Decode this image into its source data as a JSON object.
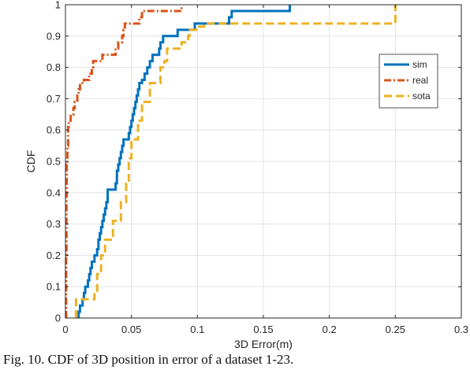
{
  "chart_data": {
    "type": "line",
    "subtype": "empirical-cdf-step",
    "xlabel": "3D Error(m)",
    "ylabel": "CDF",
    "xlim": [
      0,
      0.3
    ],
    "ylim": [
      0,
      1
    ],
    "xticks": [
      "0",
      "0.05",
      "0.1",
      "0.15",
      "0.2",
      "0.25",
      "0.3"
    ],
    "yticks": [
      "0",
      "0.1",
      "0.2",
      "0.3",
      "0.4",
      "0.5",
      "0.6",
      "0.7",
      "0.8",
      "0.9",
      "1"
    ],
    "grid": true,
    "legend_position": "upper-right",
    "series": [
      {
        "name": "sim",
        "color": "#0072BD",
        "style": "solid",
        "points": [
          [
            0.01,
            0
          ],
          [
            0.01,
            0.02
          ],
          [
            0.011,
            0.02
          ],
          [
            0.011,
            0.04
          ],
          [
            0.013,
            0.04
          ],
          [
            0.013,
            0.06
          ],
          [
            0.014,
            0.06
          ],
          [
            0.014,
            0.08
          ],
          [
            0.015,
            0.08
          ],
          [
            0.015,
            0.1
          ],
          [
            0.017,
            0.1
          ],
          [
            0.017,
            0.12
          ],
          [
            0.018,
            0.12
          ],
          [
            0.018,
            0.14
          ],
          [
            0.019,
            0.14
          ],
          [
            0.019,
            0.16
          ],
          [
            0.02,
            0.16
          ],
          [
            0.02,
            0.18
          ],
          [
            0.022,
            0.18
          ],
          [
            0.022,
            0.2
          ],
          [
            0.024,
            0.2
          ],
          [
            0.024,
            0.22
          ],
          [
            0.025,
            0.22
          ],
          [
            0.025,
            0.25
          ],
          [
            0.026,
            0.25
          ],
          [
            0.026,
            0.27
          ],
          [
            0.027,
            0.27
          ],
          [
            0.027,
            0.29
          ],
          [
            0.028,
            0.29
          ],
          [
            0.028,
            0.31
          ],
          [
            0.029,
            0.31
          ],
          [
            0.029,
            0.33
          ],
          [
            0.03,
            0.33
          ],
          [
            0.03,
            0.35
          ],
          [
            0.031,
            0.35
          ],
          [
            0.031,
            0.37
          ],
          [
            0.032,
            0.37
          ],
          [
            0.032,
            0.41
          ],
          [
            0.038,
            0.41
          ],
          [
            0.038,
            0.43
          ],
          [
            0.039,
            0.43
          ],
          [
            0.039,
            0.47
          ],
          [
            0.04,
            0.47
          ],
          [
            0.04,
            0.49
          ],
          [
            0.041,
            0.49
          ],
          [
            0.041,
            0.51
          ],
          [
            0.042,
            0.51
          ],
          [
            0.042,
            0.53
          ],
          [
            0.043,
            0.53
          ],
          [
            0.043,
            0.55
          ],
          [
            0.044,
            0.55
          ],
          [
            0.044,
            0.57
          ],
          [
            0.048,
            0.57
          ],
          [
            0.048,
            0.59
          ],
          [
            0.049,
            0.59
          ],
          [
            0.049,
            0.61
          ],
          [
            0.05,
            0.61
          ],
          [
            0.05,
            0.63
          ],
          [
            0.051,
            0.63
          ],
          [
            0.051,
            0.65
          ],
          [
            0.052,
            0.65
          ],
          [
            0.052,
            0.67
          ],
          [
            0.053,
            0.67
          ],
          [
            0.053,
            0.69
          ],
          [
            0.054,
            0.69
          ],
          [
            0.054,
            0.71
          ],
          [
            0.055,
            0.71
          ],
          [
            0.055,
            0.73
          ],
          [
            0.056,
            0.73
          ],
          [
            0.056,
            0.75
          ],
          [
            0.058,
            0.75
          ],
          [
            0.058,
            0.76
          ],
          [
            0.06,
            0.76
          ],
          [
            0.06,
            0.78
          ],
          [
            0.062,
            0.78
          ],
          [
            0.062,
            0.8
          ],
          [
            0.064,
            0.8
          ],
          [
            0.064,
            0.82
          ],
          [
            0.066,
            0.82
          ],
          [
            0.066,
            0.84
          ],
          [
            0.071,
            0.84
          ],
          [
            0.071,
            0.86
          ],
          [
            0.072,
            0.86
          ],
          [
            0.072,
            0.88
          ],
          [
            0.074,
            0.88
          ],
          [
            0.074,
            0.9
          ],
          [
            0.085,
            0.9
          ],
          [
            0.085,
            0.92
          ],
          [
            0.098,
            0.92
          ],
          [
            0.098,
            0.94
          ],
          [
            0.124,
            0.94
          ],
          [
            0.124,
            0.96
          ],
          [
            0.126,
            0.96
          ],
          [
            0.126,
            0.98
          ],
          [
            0.17,
            0.98
          ],
          [
            0.17,
            1.0
          ]
        ]
      },
      {
        "name": "real",
        "color": "#D95319",
        "style": "dash-dot",
        "points": [
          [
            0.0005,
            0
          ],
          [
            0.0005,
            0.2
          ],
          [
            0.0008,
            0.2
          ],
          [
            0.0008,
            0.39
          ],
          [
            0.001,
            0.39
          ],
          [
            0.001,
            0.49
          ],
          [
            0.0015,
            0.49
          ],
          [
            0.0015,
            0.55
          ],
          [
            0.002,
            0.55
          ],
          [
            0.002,
            0.61
          ],
          [
            0.0025,
            0.61
          ],
          [
            0.0025,
            0.63
          ],
          [
            0.004,
            0.63
          ],
          [
            0.004,
            0.65
          ],
          [
            0.006,
            0.65
          ],
          [
            0.006,
            0.67
          ],
          [
            0.007,
            0.67
          ],
          [
            0.007,
            0.69
          ],
          [
            0.009,
            0.69
          ],
          [
            0.009,
            0.71
          ],
          [
            0.01,
            0.71
          ],
          [
            0.01,
            0.73
          ],
          [
            0.011,
            0.73
          ],
          [
            0.011,
            0.75
          ],
          [
            0.014,
            0.75
          ],
          [
            0.014,
            0.76
          ],
          [
            0.018,
            0.76
          ],
          [
            0.018,
            0.78
          ],
          [
            0.02,
            0.78
          ],
          [
            0.02,
            0.8
          ],
          [
            0.021,
            0.8
          ],
          [
            0.021,
            0.82
          ],
          [
            0.028,
            0.82
          ],
          [
            0.028,
            0.84
          ],
          [
            0.038,
            0.84
          ],
          [
            0.038,
            0.86
          ],
          [
            0.04,
            0.86
          ],
          [
            0.04,
            0.88
          ],
          [
            0.043,
            0.88
          ],
          [
            0.043,
            0.9
          ],
          [
            0.044,
            0.9
          ],
          [
            0.044,
            0.92
          ],
          [
            0.045,
            0.92
          ],
          [
            0.045,
            0.94
          ],
          [
            0.056,
            0.94
          ],
          [
            0.056,
            0.96
          ],
          [
            0.058,
            0.96
          ],
          [
            0.058,
            0.98
          ],
          [
            0.088,
            0.98
          ],
          [
            0.088,
            1.0
          ]
        ]
      },
      {
        "name": "sota",
        "color": "#EDB120",
        "style": "dashed",
        "points": [
          [
            0.008,
            0
          ],
          [
            0.008,
            0.06
          ],
          [
            0.022,
            0.06
          ],
          [
            0.022,
            0.08
          ],
          [
            0.024,
            0.08
          ],
          [
            0.024,
            0.14
          ],
          [
            0.027,
            0.14
          ],
          [
            0.027,
            0.2
          ],
          [
            0.03,
            0.2
          ],
          [
            0.03,
            0.25
          ],
          [
            0.036,
            0.25
          ],
          [
            0.036,
            0.31
          ],
          [
            0.042,
            0.31
          ],
          [
            0.042,
            0.37
          ],
          [
            0.046,
            0.37
          ],
          [
            0.046,
            0.43
          ],
          [
            0.048,
            0.43
          ],
          [
            0.048,
            0.51
          ],
          [
            0.05,
            0.51
          ],
          [
            0.05,
            0.57
          ],
          [
            0.055,
            0.57
          ],
          [
            0.055,
            0.63
          ],
          [
            0.058,
            0.63
          ],
          [
            0.058,
            0.69
          ],
          [
            0.064,
            0.69
          ],
          [
            0.064,
            0.75
          ],
          [
            0.072,
            0.75
          ],
          [
            0.072,
            0.8
          ],
          [
            0.075,
            0.8
          ],
          [
            0.075,
            0.82
          ],
          [
            0.077,
            0.82
          ],
          [
            0.077,
            0.86
          ],
          [
            0.088,
            0.86
          ],
          [
            0.088,
            0.88
          ],
          [
            0.093,
            0.88
          ],
          [
            0.093,
            0.9
          ],
          [
            0.094,
            0.9
          ],
          [
            0.094,
            0.92
          ],
          [
            0.1,
            0.92
          ],
          [
            0.1,
            0.93
          ],
          [
            0.105,
            0.93
          ],
          [
            0.105,
            0.94
          ],
          [
            0.25,
            0.94
          ],
          [
            0.25,
            1.0
          ]
        ]
      }
    ]
  },
  "caption": {
    "text": "Fig. 10. CDF of 3D position in error of a dataset 1-23."
  }
}
